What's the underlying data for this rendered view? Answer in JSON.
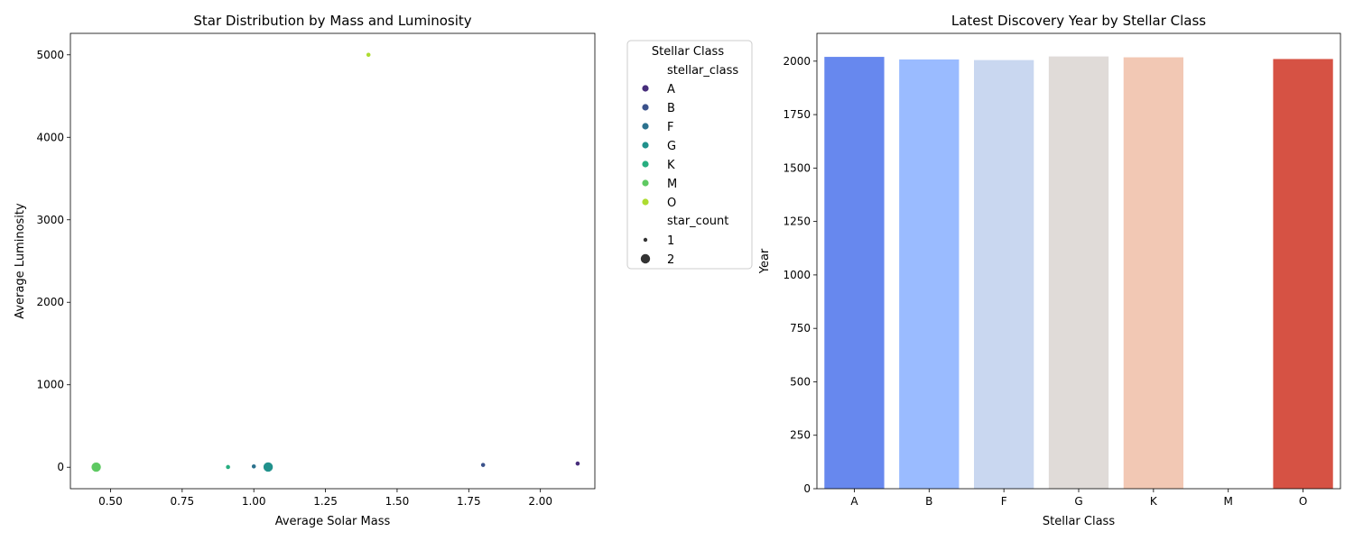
{
  "chart_data": [
    {
      "type": "scatter",
      "title": "Star Distribution by Mass and Luminosity",
      "xlabel": "Average Solar Mass",
      "ylabel": "Average Luminosity",
      "xlim": [
        0.36,
        2.19
      ],
      "ylim": [
        -260,
        5260
      ],
      "xticks": [
        0.5,
        0.75,
        1.0,
        1.25,
        1.5,
        1.75,
        2.0
      ],
      "xtick_labels": [
        "0.50",
        "0.75",
        "1.00",
        "1.25",
        "1.50",
        "1.75",
        "2.00"
      ],
      "yticks": [
        0,
        1000,
        2000,
        3000,
        4000,
        5000
      ],
      "ytick_labels": [
        "0",
        "1000",
        "2000",
        "3000",
        "4000",
        "5000"
      ],
      "grid": false,
      "points": [
        {
          "stellar_class": "A",
          "x": 2.13,
          "y": 45,
          "star_count": 1
        },
        {
          "stellar_class": "B",
          "x": 1.8,
          "y": 28,
          "star_count": 1
        },
        {
          "stellar_class": "F",
          "x": 1.0,
          "y": 10,
          "star_count": 1
        },
        {
          "stellar_class": "G",
          "x": 1.05,
          "y": 3,
          "star_count": 2
        },
        {
          "stellar_class": "K",
          "x": 0.91,
          "y": 3,
          "star_count": 1
        },
        {
          "stellar_class": "M",
          "x": 0.45,
          "y": 2,
          "star_count": 2
        },
        {
          "stellar_class": "O",
          "x": 1.4,
          "y": 5000,
          "star_count": 1
        }
      ],
      "legend": {
        "title": "Stellar Class",
        "placement": "outside-right",
        "hue_title": "stellar_class",
        "hue_entries": [
          {
            "label": "A",
            "color": "#472d7b"
          },
          {
            "label": "B",
            "color": "#3b528b"
          },
          {
            "label": "F",
            "color": "#2c728e"
          },
          {
            "label": "G",
            "color": "#21918c"
          },
          {
            "label": "K",
            "color": "#28ae80"
          },
          {
            "label": "M",
            "color": "#5ec962"
          },
          {
            "label": "O",
            "color": "#addc30"
          }
        ],
        "size_title": "star_count",
        "size_entries": [
          {
            "label": "1",
            "value": 1
          },
          {
            "label": "2",
            "value": 2
          }
        ]
      }
    },
    {
      "type": "bar",
      "title": "Latest Discovery Year by Stellar Class",
      "xlabel": "Stellar Class",
      "ylabel": "Year",
      "categories": [
        "A",
        "B",
        "F",
        "G",
        "K",
        "M",
        "O"
      ],
      "values": [
        2020,
        2008,
        2005,
        2022,
        2018,
        0,
        2010
      ],
      "colors": [
        "#6788ee",
        "#9abbff",
        "#c9d7f0",
        "#e0dbd8",
        "#f2c8b4",
        "#ffffff",
        "#d65244"
      ],
      "ylim": [
        0,
        2130
      ],
      "yticks": [
        0,
        250,
        500,
        750,
        1000,
        1250,
        1500,
        1750,
        2000
      ],
      "ytick_labels": [
        "0",
        "250",
        "500",
        "750",
        "1000",
        "1250",
        "1500",
        "1750",
        "2000"
      ],
      "grid": false
    }
  ]
}
